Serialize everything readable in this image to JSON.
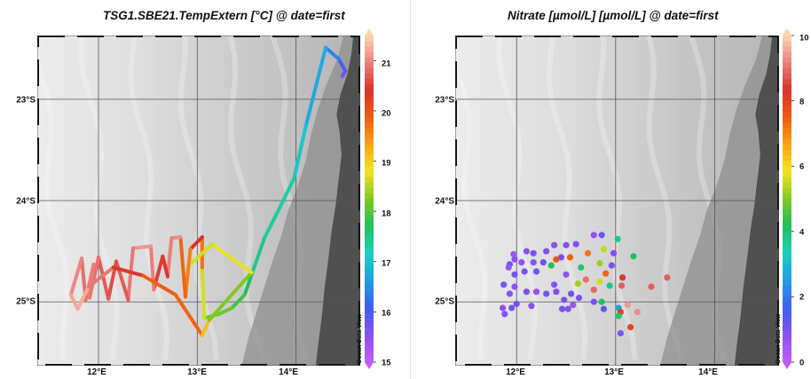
{
  "left": {
    "title": "TSG1.SBE21.TempExtern [°C] @ date=first",
    "lat_labels": [
      "23°S",
      "24°S",
      "25°S"
    ],
    "lon_labels": [
      "12°E",
      "13°E",
      "14°E"
    ],
    "colorbar": {
      "min": 15,
      "max": 21.5,
      "ticks": [
        "21",
        "20",
        "19",
        "18",
        "17",
        "16",
        "15"
      ],
      "tick_values": [
        21,
        20,
        19,
        18,
        17,
        16,
        15
      ]
    },
    "odv_label": "Ocean Data View"
  },
  "right": {
    "title": "Nitrate [µmol/L] [µmol/L] @ date=first",
    "lat_labels": [
      "23°S",
      "24°S",
      "25°S"
    ],
    "lon_labels": [
      "12°E",
      "13°E",
      "14°E"
    ],
    "colorbar": {
      "min": 0,
      "max": 10,
      "ticks": [
        "10",
        "8",
        "6",
        "4",
        "2",
        "0"
      ],
      "tick_values": [
        10,
        8,
        6,
        4,
        2,
        0
      ]
    },
    "odv_label": "Ocean Data View"
  },
  "map_extent": {
    "lon_min": 11.38,
    "lon_max": 14.65,
    "lat_min": -25.63,
    "lat_max": -22.37
  },
  "colors": {
    "water_deep": "#b4b4b4",
    "water_shallow": "#ececec",
    "land": "#505050",
    "grid": "#555555"
  },
  "colormap": [
    "#c15cf6",
    "#8a4ff0",
    "#3d5ff2",
    "#1f9ee6",
    "#1dd0c0",
    "#1fc05a",
    "#82c822",
    "#f2e51e",
    "#f9a514",
    "#ef5a12",
    "#d9322a",
    "#e9807c",
    "#fbd7b4"
  ],
  "cruise_track": [
    [
      14.47,
      -22.77
    ],
    [
      14.5,
      -22.72
    ],
    [
      14.43,
      -22.6
    ],
    [
      14.3,
      -22.49
    ],
    [
      14.1,
      -23.26
    ],
    [
      13.98,
      -23.78
    ],
    [
      13.84,
      -24.06
    ],
    [
      13.68,
      -24.37
    ],
    [
      13.54,
      -24.76
    ],
    [
      13.48,
      -24.93
    ],
    [
      13.35,
      -25.06
    ],
    [
      13.22,
      -25.12
    ],
    [
      13.07,
      -25.16
    ],
    [
      13.05,
      -24.66
    ],
    [
      13.05,
      -24.36
    ],
    [
      12.93,
      -24.48
    ],
    [
      12.88,
      -24.95
    ],
    [
      12.83,
      -24.36
    ],
    [
      12.74,
      -24.37
    ],
    [
      12.7,
      -24.75
    ],
    [
      12.65,
      -24.55
    ],
    [
      12.56,
      -24.88
    ],
    [
      12.53,
      -24.45
    ],
    [
      12.35,
      -24.47
    ],
    [
      12.3,
      -24.98
    ],
    [
      12.18,
      -24.6
    ],
    [
      12.1,
      -24.97
    ],
    [
      12.0,
      -24.56
    ],
    [
      11.91,
      -24.96
    ],
    [
      11.95,
      -24.63
    ],
    [
      11.87,
      -24.98
    ],
    [
      11.83,
      -24.57
    ],
    [
      11.72,
      -24.93
    ],
    [
      11.79,
      -25.07
    ],
    [
      11.9,
      -24.85
    ],
    [
      12.15,
      -24.66
    ],
    [
      12.45,
      -24.74
    ],
    [
      12.78,
      -24.93
    ],
    [
      13.05,
      -25.33
    ],
    [
      13.12,
      -25.18
    ],
    [
      13.55,
      -24.71
    ],
    [
      13.15,
      -24.43
    ],
    [
      12.95,
      -24.61
    ]
  ],
  "track_temps": [
    15.6,
    15.8,
    16.2,
    16.6,
    16.9,
    17.2,
    17.4,
    17.3,
    17.6,
    17.8,
    18.0,
    18.2,
    18.1,
    19.2,
    20.2,
    20.6,
    18.6,
    21.0,
    21.1,
    20.8,
    20.1,
    20.9,
    21.0,
    21.2,
    20.6,
    20.8,
    20.4,
    21.0,
    20.7,
    21.1,
    20.8,
    20.9,
    21.1,
    21.3,
    21.2,
    20.6,
    20.3,
    19.4,
    20.2,
    18.0,
    18.5,
    19.0,
    18.3
  ],
  "nitrate_points": [
    [
      12.78,
      -24.34,
      0.7
    ],
    [
      12.86,
      -24.34,
      1.2
    ],
    [
      13.02,
      -24.38,
      3.8
    ],
    [
      12.6,
      -24.43,
      1.0
    ],
    [
      12.5,
      -24.44,
      0.9
    ],
    [
      12.38,
      -24.44,
      0.8
    ],
    [
      12.3,
      -24.5,
      1.0
    ],
    [
      12.1,
      -24.5,
      0.8
    ],
    [
      12.17,
      -24.52,
      1.0
    ],
    [
      11.97,
      -24.53,
      0.6
    ],
    [
      12.88,
      -24.48,
      5.5
    ],
    [
      12.72,
      -24.52,
      7.2
    ],
    [
      12.98,
      -24.52,
      0.9
    ],
    [
      13.18,
      -24.55,
      4.2
    ],
    [
      12.45,
      -24.56,
      1.0
    ],
    [
      12.54,
      -24.56,
      7.4
    ],
    [
      12.4,
      -24.58,
      7.6
    ],
    [
      12.27,
      -24.61,
      1.2
    ],
    [
      12.17,
      -24.61,
      0.8
    ],
    [
      12.05,
      -24.61,
      0.7
    ],
    [
      11.98,
      -24.58,
      0.8
    ],
    [
      11.93,
      -24.63,
      1.2
    ],
    [
      12.35,
      -24.64,
      4.2
    ],
    [
      12.84,
      -24.62,
      5.2
    ],
    [
      12.96,
      -24.64,
      0.9
    ],
    [
      11.92,
      -24.66,
      0.5
    ],
    [
      12.65,
      -24.66,
      4.0
    ],
    [
      12.08,
      -24.7,
      1.0
    ],
    [
      11.98,
      -24.73,
      1.1
    ],
    [
      12.2,
      -24.7,
      1.2
    ],
    [
      12.5,
      -24.73,
      0.7
    ],
    [
      12.9,
      -24.72,
      7.4
    ],
    [
      13.07,
      -24.76,
      8.2
    ],
    [
      13.52,
      -24.76,
      8.8
    ],
    [
      12.84,
      -24.8,
      5.6
    ],
    [
      11.87,
      -24.83,
      1.0
    ],
    [
      11.98,
      -24.85,
      0.8
    ],
    [
      12.38,
      -24.83,
      0.8
    ],
    [
      12.62,
      -24.82,
      5.2
    ],
    [
      12.7,
      -24.78,
      9.0
    ],
    [
      12.78,
      -24.88,
      8.9
    ],
    [
      12.94,
      -24.84,
      3.8
    ],
    [
      13.06,
      -24.84,
      8.8
    ],
    [
      13.36,
      -24.85,
      8.8
    ],
    [
      12.1,
      -24.9,
      1.0
    ],
    [
      12.2,
      -24.9,
      0.7
    ],
    [
      12.3,
      -24.92,
      1.0
    ],
    [
      12.4,
      -24.9,
      0.9
    ],
    [
      12.55,
      -24.92,
      1.2
    ],
    [
      11.93,
      -24.92,
      0.8
    ],
    [
      12.63,
      -24.96,
      1.0
    ],
    [
      12.48,
      -24.98,
      0.9
    ],
    [
      12.57,
      -25.03,
      0.6
    ],
    [
      12.78,
      -25.0,
      1.0
    ],
    [
      12.86,
      -25.0,
      4.2
    ],
    [
      13.12,
      -25.03,
      9.4
    ],
    [
      12.0,
      -25.02,
      1.0
    ],
    [
      12.15,
      -25.04,
      0.8
    ],
    [
      11.86,
      -25.06,
      0.7
    ],
    [
      11.95,
      -25.06,
      1.0
    ],
    [
      12.46,
      -25.07,
      1.1
    ],
    [
      12.52,
      -25.07,
      0.9
    ],
    [
      12.88,
      -25.07,
      1.3
    ],
    [
      13.03,
      -25.06,
      2.6
    ],
    [
      13.05,
      -25.1,
      8.0
    ],
    [
      13.22,
      -25.1,
      9.3
    ],
    [
      11.88,
      -25.12,
      0.9
    ],
    [
      13.03,
      -25.14,
      4.0
    ],
    [
      13.15,
      -25.25,
      7.9
    ],
    [
      13.05,
      -25.31,
      1.0
    ]
  ],
  "coast": [
    [
      14.58,
      -22.37
    ],
    [
      14.56,
      -22.55
    ],
    [
      14.52,
      -22.75
    ],
    [
      14.45,
      -22.95
    ],
    [
      14.41,
      -23.15
    ],
    [
      14.44,
      -23.32
    ],
    [
      14.46,
      -23.55
    ],
    [
      14.43,
      -23.8
    ],
    [
      14.4,
      -24.05
    ],
    [
      14.36,
      -24.3
    ],
    [
      14.33,
      -24.55
    ],
    [
      14.29,
      -24.85
    ],
    [
      14.26,
      -25.15
    ],
    [
      14.22,
      -25.45
    ],
    [
      14.2,
      -25.63
    ]
  ],
  "slope": [
    [
      14.48,
      -22.37
    ],
    [
      14.42,
      -22.6
    ],
    [
      14.31,
      -22.85
    ],
    [
      14.22,
      -23.1
    ],
    [
      14.15,
      -23.35
    ],
    [
      14.1,
      -23.6
    ],
    [
      14.02,
      -23.85
    ],
    [
      13.92,
      -24.1
    ],
    [
      13.85,
      -24.35
    ],
    [
      13.76,
      -24.6
    ],
    [
      13.68,
      -24.85
    ],
    [
      13.6,
      -25.1
    ],
    [
      13.52,
      -25.35
    ],
    [
      13.45,
      -25.63
    ]
  ]
}
